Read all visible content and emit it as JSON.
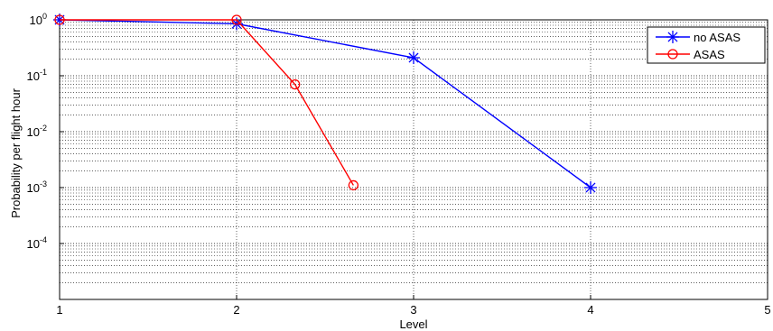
{
  "chart_data": {
    "type": "line",
    "title": "",
    "xlabel": "Level",
    "ylabel": "Probability per flight hour",
    "xlim": [
      1,
      5
    ],
    "ylim": [
      1e-05,
      1
    ],
    "y_scale": "log",
    "grid": true,
    "legend_position": "top-right",
    "x_ticks": [
      "1",
      "2",
      "3",
      "4",
      "5"
    ],
    "y_ticks": [
      {
        "base": "10",
        "exp": "0",
        "value": 1
      },
      {
        "base": "10",
        "exp": "-1",
        "value": 0.1
      },
      {
        "base": "10",
        "exp": "-2",
        "value": 0.01
      },
      {
        "base": "10",
        "exp": "-3",
        "value": 0.001
      },
      {
        "base": "10",
        "exp": "-4",
        "value": 0.0001
      }
    ],
    "series": [
      {
        "name": "no ASAS",
        "color": "#0000ff",
        "marker": "asterisk",
        "x": [
          1,
          2,
          3,
          4
        ],
        "y": [
          1,
          0.85,
          0.21,
          0.001
        ]
      },
      {
        "name": "ASAS",
        "color": "#ff0000",
        "marker": "circle",
        "x": [
          1,
          2,
          2.33,
          2.66
        ],
        "y": [
          1,
          1,
          0.07,
          0.0011
        ]
      }
    ]
  }
}
